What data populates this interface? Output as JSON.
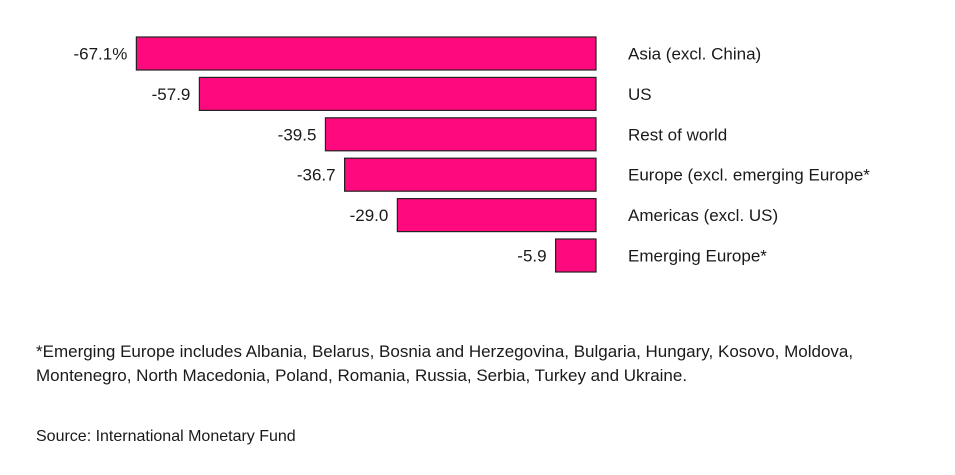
{
  "chart_data": {
    "type": "bar",
    "orientation": "horizontal",
    "title": "",
    "xlabel": "",
    "ylabel": "",
    "xlim": [
      -70,
      0
    ],
    "grid": false,
    "bar_color": "#ff0a7e",
    "bar_border_color": "#222222",
    "categories": [
      "Asia (excl. China)",
      "US",
      "Rest of world",
      "Europe (excl. emerging Europe*",
      "Americas (excl. US)",
      "Emerging Europe*"
    ],
    "values": [
      -67.1,
      -57.9,
      -39.5,
      -36.7,
      -29.0,
      -5.9
    ],
    "value_labels": [
      "-67.1%",
      "-57.9",
      "-39.5",
      "-36.7",
      "-29.0",
      "-5.9"
    ]
  },
  "footnote": "*Emerging Europe includes Albania, Belarus, Bosnia and Herzegovina, Bulgaria, Hungary, Kosovo, Moldova, Montenegro, North Macedonia, Poland, Romania, Russia, Serbia, Turkey and Ukraine.",
  "source": "Source: International Monetary Fund"
}
